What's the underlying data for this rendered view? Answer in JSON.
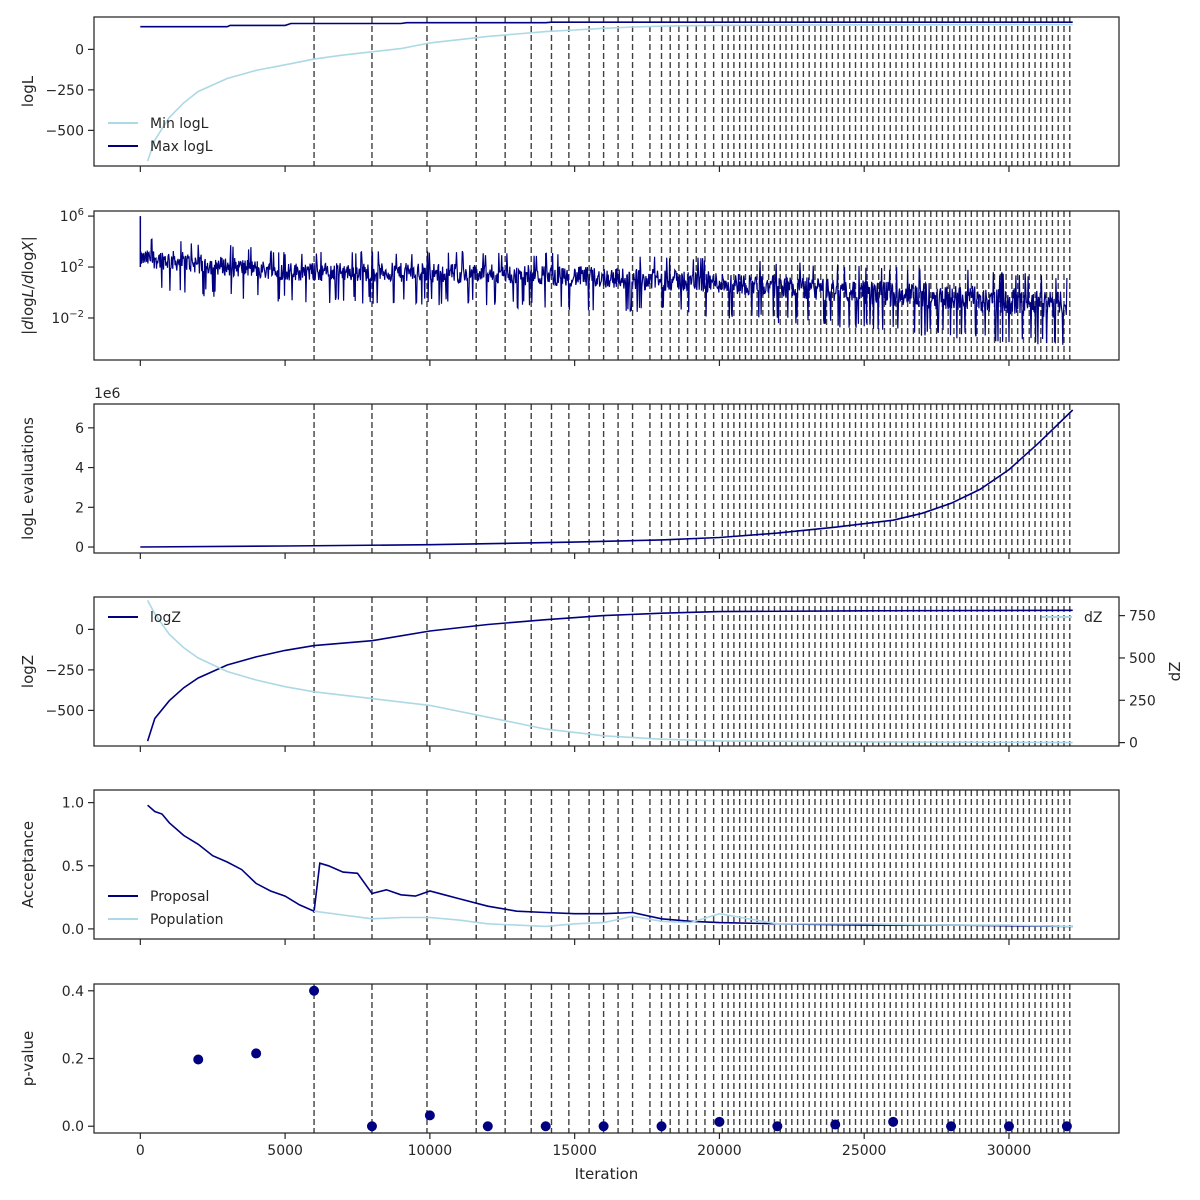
{
  "xlabel": "Iteration",
  "x_ticks": [
    "0",
    "5000",
    "10000",
    "15000",
    "20000",
    "25000",
    "30000"
  ],
  "colors": {
    "light": "#add8e6",
    "dark": "#000080",
    "vline": "#404040",
    "axes": "#262626"
  },
  "chart_data": [
    {
      "type": "line",
      "id": "logl",
      "ylabel": "logL",
      "xlim": [
        -1600,
        33800
      ],
      "ylim": [
        -720,
        200
      ],
      "yticks": [
        {
          "v": 0,
          "l": "0"
        },
        {
          "v": -250,
          "l": "−250"
        },
        {
          "v": -500,
          "l": "−500"
        }
      ],
      "legend": "bottom-left",
      "series": [
        {
          "name": "Min logL",
          "color": "light",
          "points": [
            [
              250,
              -690
            ],
            [
              500,
              -560
            ],
            [
              1000,
              -420
            ],
            [
              1500,
              -330
            ],
            [
              2000,
              -260
            ],
            [
              3000,
              -180
            ],
            [
              4000,
              -130
            ],
            [
              5000,
              -95
            ],
            [
              6000,
              -60
            ],
            [
              7000,
              -35
            ],
            [
              8000,
              -15
            ],
            [
              9000,
              5
            ],
            [
              10000,
              40
            ],
            [
              11000,
              60
            ],
            [
              12000,
              80
            ],
            [
              13000,
              95
            ],
            [
              14000,
              110
            ],
            [
              15000,
              120
            ],
            [
              16000,
              130
            ],
            [
              17000,
              138
            ],
            [
              18000,
              143
            ],
            [
              19000,
              146
            ],
            [
              20000,
              148
            ],
            [
              22000,
              150
            ],
            [
              25000,
              152
            ],
            [
              30000,
              153
            ],
            [
              32200,
              153
            ]
          ]
        },
        {
          "name": "Max logL",
          "color": "dark",
          "points": [
            [
              0,
              140
            ],
            [
              3000,
              140
            ],
            [
              3100,
              148
            ],
            [
              5000,
              148
            ],
            [
              5200,
              160
            ],
            [
              9000,
              160
            ],
            [
              9200,
              165
            ],
            [
              14000,
              165
            ],
            [
              14200,
              168
            ],
            [
              32200,
              168
            ]
          ]
        }
      ]
    },
    {
      "type": "line",
      "id": "dlogl",
      "ylabel": "|d logL/d logX|",
      "scale": "log",
      "xlim": [
        -1600,
        33800
      ],
      "ylim": [
        -5.3,
        6.4
      ],
      "yticks": [
        {
          "v": 6,
          "l": "10^6"
        },
        {
          "v": 2,
          "l": "10^2"
        },
        {
          "v": -2,
          "l": "10^-2"
        }
      ],
      "series": [
        {
          "name": "",
          "color": "dark",
          "band": [
            [
              0,
              3.7,
              1.2
            ],
            [
              500,
              4.2,
              0.6
            ],
            [
              2000,
              3.7,
              0.3
            ],
            [
              5000,
              3.0,
              -0.2
            ],
            [
              10000,
              3.0,
              -0.4
            ],
            [
              15000,
              2.8,
              -0.8
            ],
            [
              20000,
              2.4,
              -1.4
            ],
            [
              25000,
              1.8,
              -2.4
            ],
            [
              28000,
              1.6,
              -3.0
            ],
            [
              32000,
              1.0,
              -3.8
            ]
          ],
          "spike": [
            0,
            6.0
          ]
        }
      ]
    },
    {
      "type": "line",
      "id": "evals",
      "ylabel": "logL evaluations",
      "offset_label": "1e6",
      "xlim": [
        -1600,
        33800
      ],
      "ylim": [
        -0.3,
        7.2
      ],
      "yticks": [
        {
          "v": 0,
          "l": "0"
        },
        {
          "v": 2,
          "l": "2"
        },
        {
          "v": 4,
          "l": "4"
        },
        {
          "v": 6,
          "l": "6"
        }
      ],
      "series": [
        {
          "name": "",
          "color": "dark",
          "points": [
            [
              0,
              0.0
            ],
            [
              5000,
              0.05
            ],
            [
              10000,
              0.12
            ],
            [
              15000,
              0.25
            ],
            [
              18000,
              0.36
            ],
            [
              20000,
              0.48
            ],
            [
              22000,
              0.7
            ],
            [
              24000,
              1.0
            ],
            [
              26000,
              1.35
            ],
            [
              27000,
              1.7
            ],
            [
              28000,
              2.2
            ],
            [
              29000,
              2.9
            ],
            [
              30000,
              3.9
            ],
            [
              31000,
              5.2
            ],
            [
              32200,
              6.9
            ]
          ]
        }
      ]
    },
    {
      "type": "line",
      "id": "logz",
      "ylabel": "logZ",
      "y2label": "dZ",
      "xlim": [
        -1600,
        33800
      ],
      "ylim": [
        -720,
        200
      ],
      "y2lim": [
        -20,
        860
      ],
      "yticks": [
        {
          "v": 0,
          "l": "0"
        },
        {
          "v": -250,
          "l": "−250"
        },
        {
          "v": -500,
          "l": "−500"
        }
      ],
      "y2ticks": [
        {
          "v": 0,
          "l": "0"
        },
        {
          "v": 250,
          "l": "250"
        },
        {
          "v": 500,
          "l": "500"
        },
        {
          "v": 750,
          "l": "750"
        }
      ],
      "series": [
        {
          "name": "logZ",
          "color": "dark",
          "axis": "left",
          "points": [
            [
              250,
              -690
            ],
            [
              500,
              -550
            ],
            [
              1000,
              -440
            ],
            [
              1500,
              -360
            ],
            [
              2000,
              -300
            ],
            [
              3000,
              -220
            ],
            [
              4000,
              -170
            ],
            [
              5000,
              -130
            ],
            [
              6000,
              -100
            ],
            [
              8000,
              -70
            ],
            [
              10000,
              -10
            ],
            [
              12000,
              30
            ],
            [
              14000,
              60
            ],
            [
              16000,
              85
            ],
            [
              18000,
              100
            ],
            [
              20000,
              110
            ],
            [
              25000,
              115
            ],
            [
              32200,
              118
            ]
          ]
        },
        {
          "name": "dZ",
          "color": "light",
          "axis": "right",
          "points": [
            [
              250,
              840
            ],
            [
              500,
              760
            ],
            [
              1000,
              640
            ],
            [
              1500,
              560
            ],
            [
              2000,
              500
            ],
            [
              3000,
              420
            ],
            [
              4000,
              370
            ],
            [
              5000,
              330
            ],
            [
              6000,
              300
            ],
            [
              8000,
              260
            ],
            [
              10000,
              220
            ],
            [
              12000,
              150
            ],
            [
              14000,
              80
            ],
            [
              16000,
              40
            ],
            [
              18000,
              20
            ],
            [
              20000,
              10
            ],
            [
              25000,
              5
            ],
            [
              32200,
              0
            ]
          ]
        }
      ]
    },
    {
      "type": "line",
      "id": "accept",
      "ylabel": "Acceptance",
      "xlim": [
        -1600,
        33800
      ],
      "ylim": [
        -0.08,
        1.1
      ],
      "yticks": [
        {
          "v": 0,
          "l": "0.0"
        },
        {
          "v": 0.5,
          "l": "0.5"
        },
        {
          "v": 1,
          "l": "1.0"
        }
      ],
      "legend": "bottom-left",
      "series": [
        {
          "name": "Proposal",
          "color": "dark",
          "points": [
            [
              250,
              0.98
            ],
            [
              500,
              0.93
            ],
            [
              750,
              0.91
            ],
            [
              1000,
              0.84
            ],
            [
              1500,
              0.74
            ],
            [
              2000,
              0.67
            ],
            [
              2500,
              0.58
            ],
            [
              3000,
              0.53
            ],
            [
              3500,
              0.47
            ],
            [
              4000,
              0.36
            ],
            [
              4500,
              0.3
            ],
            [
              5000,
              0.26
            ],
            [
              5500,
              0.19
            ],
            [
              6000,
              0.14
            ],
            [
              6200,
              0.52
            ],
            [
              6500,
              0.5
            ],
            [
              7000,
              0.45
            ],
            [
              7500,
              0.44
            ],
            [
              8000,
              0.28
            ],
            [
              8500,
              0.31
            ],
            [
              9000,
              0.27
            ],
            [
              9500,
              0.26
            ],
            [
              10000,
              0.3
            ],
            [
              10500,
              0.27
            ],
            [
              11000,
              0.24
            ],
            [
              12000,
              0.18
            ],
            [
              13000,
              0.14
            ],
            [
              14000,
              0.13
            ],
            [
              15000,
              0.12
            ],
            [
              16000,
              0.12
            ],
            [
              17000,
              0.13
            ],
            [
              18000,
              0.08
            ],
            [
              19000,
              0.06
            ],
            [
              20000,
              0.05
            ],
            [
              22000,
              0.04
            ],
            [
              25000,
              0.03
            ],
            [
              28000,
              0.03
            ],
            [
              32200,
              0.02
            ]
          ]
        },
        {
          "name": "Population",
          "color": "light",
          "points": [
            [
              6000,
              0.14
            ],
            [
              7000,
              0.11
            ],
            [
              8000,
              0.08
            ],
            [
              9000,
              0.09
            ],
            [
              10000,
              0.09
            ],
            [
              11000,
              0.07
            ],
            [
              12000,
              0.04
            ],
            [
              13000,
              0.03
            ],
            [
              14000,
              0.02
            ],
            [
              15000,
              0.04
            ],
            [
              16000,
              0.05
            ],
            [
              17000,
              0.1
            ],
            [
              18000,
              0.06
            ],
            [
              19000,
              0.05
            ],
            [
              20000,
              0.12
            ],
            [
              22000,
              0.04
            ],
            [
              25000,
              0.04
            ],
            [
              28000,
              0.03
            ],
            [
              30000,
              0.03
            ],
            [
              32200,
              0.02
            ]
          ]
        }
      ]
    },
    {
      "type": "scatter",
      "id": "pvalue",
      "ylabel": "p-value",
      "xlim": [
        -1600,
        33800
      ],
      "ylim": [
        -0.02,
        0.42
      ],
      "yticks": [
        {
          "v": 0,
          "l": "0.0"
        },
        {
          "v": 0.2,
          "l": "0.2"
        },
        {
          "v": 0.4,
          "l": "0.4"
        }
      ],
      "series": [
        {
          "name": "",
          "color": "dark",
          "points": [
            [
              2000,
              0.197
            ],
            [
              4000,
              0.215
            ],
            [
              6000,
              0.4
            ],
            [
              8000,
              0.0
            ],
            [
              10000,
              0.032
            ],
            [
              12000,
              0.0
            ],
            [
              14000,
              0.0
            ],
            [
              16000,
              0.0
            ],
            [
              18000,
              0.0
            ],
            [
              20000,
              0.013
            ],
            [
              22000,
              0.0
            ],
            [
              24000,
              0.005
            ],
            [
              26000,
              0.013
            ],
            [
              28000,
              0.0
            ],
            [
              30000,
              0.0
            ],
            [
              32000,
              0.0
            ]
          ]
        }
      ]
    }
  ],
  "vlines": [
    6000,
    8000,
    9900,
    11600,
    12600,
    13500,
    14200,
    14800,
    15500,
    16000,
    16500,
    17000,
    17600,
    18000,
    18300,
    18600,
    18900,
    19200,
    19500,
    19800,
    20100,
    20300,
    20500,
    20700,
    20900,
    21100,
    21300,
    21500,
    21700,
    21900,
    22100,
    22300,
    22500,
    22700,
    22900,
    23100,
    23300,
    23500,
    23700,
    23900,
    24100,
    24300,
    24500,
    24700,
    24900,
    25100,
    25300,
    25500,
    25700,
    25900,
    26100,
    26300,
    26500,
    26700,
    26900,
    27100,
    27300,
    27500,
    27700,
    27900,
    28100,
    28300,
    28500,
    28700,
    28900,
    29100,
    29300,
    29500,
    29700,
    29900,
    30100,
    30300,
    30500,
    30700,
    30900,
    31100,
    31300,
    31500,
    31700,
    31900,
    32100
  ]
}
